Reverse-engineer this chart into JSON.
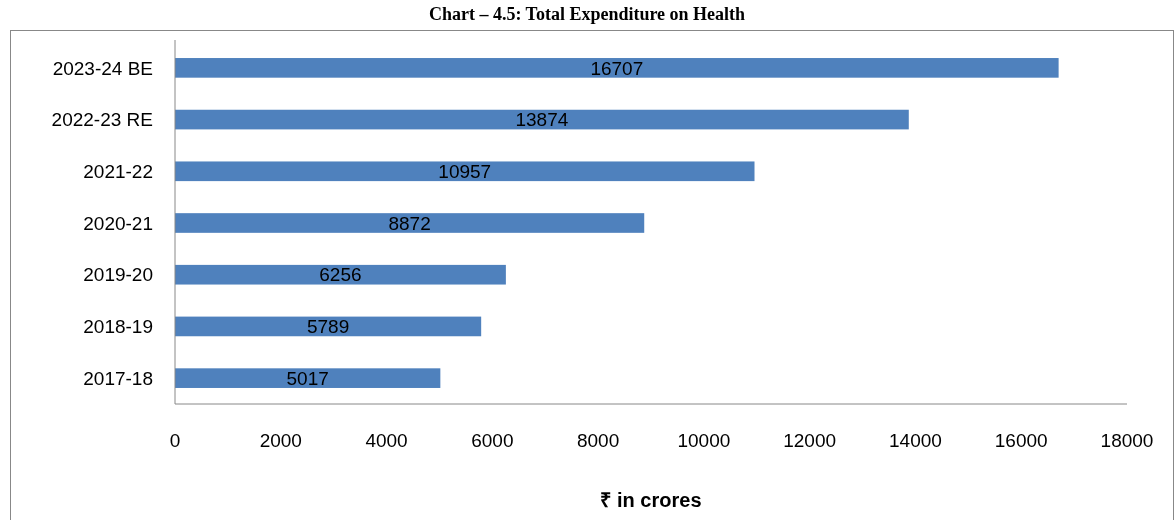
{
  "chart_data": {
    "type": "bar",
    "orientation": "horizontal",
    "title": "Chart – 4.5: Total Expenditure on Health",
    "xlabel": "₹ in crores",
    "categories": [
      "2023-24 BE",
      "2022-23 RE",
      "2021-22",
      "2020-21",
      "2019-20",
      "2018-19",
      "2017-18"
    ],
    "values": [
      16707,
      13874,
      10957,
      8872,
      6256,
      5789,
      5017
    ],
    "color": "#4f81bd",
    "xlim": [
      0,
      18000
    ],
    "xticks": [
      0,
      2000,
      4000,
      6000,
      8000,
      10000,
      12000,
      14000,
      16000,
      18000
    ],
    "data_labels": true,
    "grid": false
  }
}
